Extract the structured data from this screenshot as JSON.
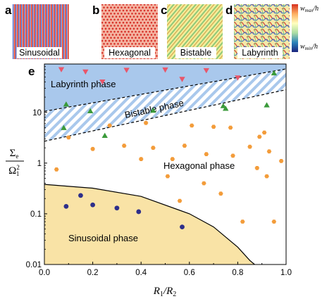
{
  "panels": {
    "a": {
      "letter": "a",
      "label": "Sinusoidal"
    },
    "b": {
      "letter": "b",
      "label": "Hexagonal"
    },
    "c": {
      "letter": "c",
      "label": "Bistable"
    },
    "d": {
      "letter": "d",
      "label": "Labyrinth"
    },
    "e": {
      "letter": "e"
    }
  },
  "colorbar": {
    "max_label": "w_max/h",
    "min_label": "w_min/h",
    "max_main": "w",
    "max_sub": "max",
    "max_tail": "/h",
    "min_main": "w",
    "min_sub": "min",
    "min_tail": "/h",
    "colors": [
      "#d7301f",
      "#fdae61",
      "#ffffbf",
      "#abdda4",
      "#2b83ba",
      "#1a237e"
    ]
  },
  "chart_data": {
    "type": "scatter",
    "xlabel": "R1/R2",
    "ylabel": "Σe/Ω1^2",
    "xlim": [
      0.0,
      1.0
    ],
    "ylim": [
      0.01,
      90
    ],
    "yscale": "log",
    "x_ticks": [
      "0.0",
      "0.2",
      "0.4",
      "0.6",
      "0.8",
      "1.0"
    ],
    "y_ticks": [
      "0.01",
      "0.1",
      "1",
      "10"
    ],
    "region_labels": {
      "labyrinth": "Labyrinth phase",
      "bistable": "Bistable phase",
      "hexagonal": "Hexagonal phase",
      "sinusoidal": "Sinusoidal phase"
    },
    "boundaries": {
      "upper_dashed": {
        "x": [
          0.0,
          1.0
        ],
        "y": [
          10.5,
          72
        ]
      },
      "lower_dashed": {
        "x": [
          0.0,
          1.0
        ],
        "y": [
          2.7,
          28
        ]
      },
      "sinusoidal_curve": {
        "x": [
          0.0,
          0.2,
          0.4,
          0.6,
          0.7,
          0.8,
          0.85,
          0.87
        ],
        "y": [
          0.38,
          0.32,
          0.22,
          0.1,
          0.055,
          0.022,
          0.012,
          0.01
        ]
      }
    },
    "colors": {
      "labyrinth_fill": "#a9c8ec",
      "bistable_hatch": "#a9c8ec",
      "sinusoidal_fill": "#f9e3a6",
      "labyrinth_marker": "#e8566a",
      "bistable_marker": "#3a9a3a",
      "hexagonal_marker": "#f39c3a",
      "sinusoidal_marker": "#2e2f8a"
    },
    "series": [
      {
        "marker": "triangle-down",
        "values": [
          [
            0.07,
            70
          ],
          [
            0.17,
            63
          ],
          [
            0.24,
            40
          ],
          [
            0.34,
            68
          ],
          [
            0.5,
            69
          ],
          [
            0.57,
            45
          ],
          [
            0.67,
            67
          ],
          [
            0.8,
            48
          ]
        ]
      },
      {
        "marker": "triangle-up",
        "values": [
          [
            0.09,
            14.5
          ],
          [
            0.08,
            5.0
          ],
          [
            0.19,
            10.7
          ],
          [
            0.25,
            3.5
          ],
          [
            0.45,
            11.0
          ],
          [
            0.74,
            13.5
          ],
          [
            0.75,
            12.0
          ],
          [
            0.92,
            14.0
          ],
          [
            0.95,
            60
          ]
        ]
      },
      {
        "marker": "hexagon",
        "values": [
          [
            0.05,
            0.75
          ],
          [
            0.1,
            3.2
          ],
          [
            0.2,
            1.9
          ],
          [
            0.27,
            5.5
          ],
          [
            0.33,
            2.2
          ],
          [
            0.4,
            1.2
          ],
          [
            0.42,
            6.2
          ],
          [
            0.45,
            2.0
          ],
          [
            0.51,
            0.55
          ],
          [
            0.53,
            1.2
          ],
          [
            0.56,
            0.18
          ],
          [
            0.58,
            2.2
          ],
          [
            0.61,
            5.5
          ],
          [
            0.66,
            0.4
          ],
          [
            0.67,
            1.5
          ],
          [
            0.7,
            5.2
          ],
          [
            0.73,
            0.25
          ],
          [
            0.77,
            5.0
          ],
          [
            0.78,
            1.4
          ],
          [
            0.82,
            0.07
          ],
          [
            0.85,
            2.1
          ],
          [
            0.88,
            0.8
          ],
          [
            0.89,
            3.3
          ],
          [
            0.91,
            4.0
          ],
          [
            0.92,
            0.55
          ],
          [
            0.93,
            1.7
          ],
          [
            0.95,
            0.07
          ],
          [
            0.98,
            1.1
          ]
        ]
      },
      {
        "marker": "circle",
        "values": [
          [
            0.09,
            0.14
          ],
          [
            0.15,
            0.23
          ],
          [
            0.2,
            0.15
          ],
          [
            0.3,
            0.13
          ],
          [
            0.39,
            0.11
          ],
          [
            0.57,
            0.055
          ]
        ]
      }
    ]
  }
}
